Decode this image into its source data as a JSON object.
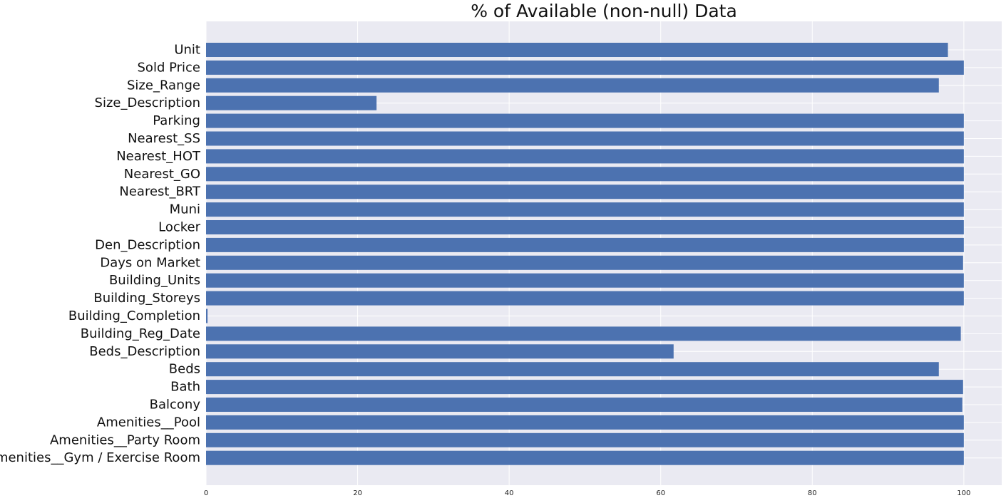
{
  "chart_data": {
    "type": "bar",
    "orientation": "horizontal",
    "title": "% of Available (non-null) Data",
    "xlabel": "",
    "ylabel": "",
    "xlim": [
      0,
      105
    ],
    "xticks": [
      0,
      20,
      40,
      60,
      80,
      100
    ],
    "grid": true,
    "bar_color": "#4c72b0",
    "background_color": "#eaeaf2",
    "categories": [
      "Unit",
      "Sold Price",
      "Size_Range",
      "Size_Description",
      "Parking",
      "Nearest_SS",
      "Nearest_HOT",
      "Nearest_GO",
      "Nearest_BRT",
      "Muni",
      "Locker",
      "Den_Description",
      "Days on Market",
      "Building_Units",
      "Building_Storeys",
      "Building_Completion",
      "Building_Reg_Date",
      "Beds_Description",
      "Beds",
      "Bath",
      "Balcony",
      "Amenities__Pool",
      "Amenities__Party Room",
      "Amenities__Gym / Exercise Room"
    ],
    "values": [
      97.9,
      100,
      96.7,
      22.5,
      100,
      100,
      100,
      100,
      100,
      100,
      100,
      100,
      99.9,
      100,
      100,
      0.2,
      99.6,
      61.7,
      96.7,
      99.9,
      99.8,
      100,
      100,
      100
    ]
  }
}
